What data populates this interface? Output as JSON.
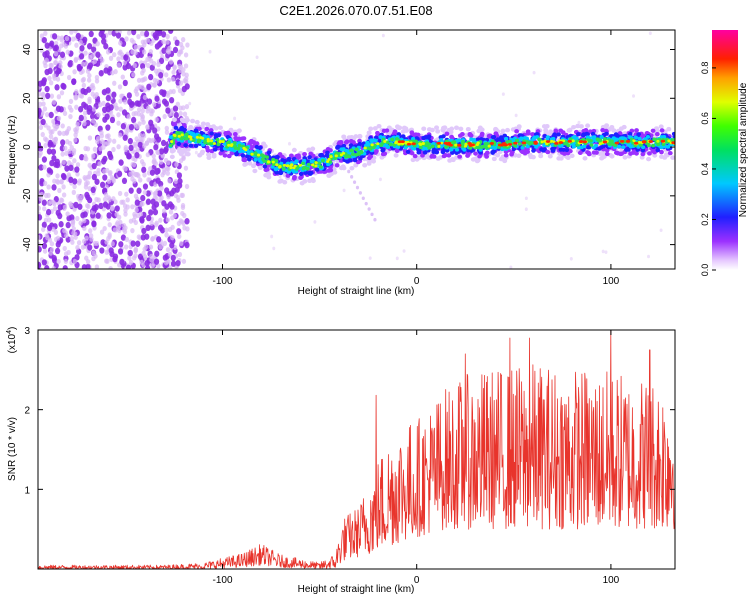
{
  "figure_title": "C2E1.2026.070.07.51.E08",
  "chart_data": [
    {
      "type": "heatmap",
      "title": "C2E1.2026.070.07.51.E08",
      "xlabel": "Height of straight line (km)",
      "ylabel": "Frequency (Hz)",
      "xlim": [
        -195,
        133
      ],
      "ylim": [
        -50,
        48
      ],
      "xticks": [
        -100,
        0,
        100
      ],
      "yticks": [
        -40,
        -20,
        0,
        20,
        40
      ],
      "colorbar": {
        "label": "Normalized spectral amplitude",
        "range": [
          0,
          0.95
        ],
        "ticks": [
          0.0,
          0.2,
          0.4,
          0.6,
          0.8
        ],
        "colormap": "rainbow (white-violet-blue-cyan-green-yellow-red-magenta)"
      },
      "ridge": {
        "description": "spectral ridge, noisy scatter below x=-120 km",
        "points": [
          {
            "x": -125,
            "freq": 5
          },
          {
            "x": -110,
            "freq": 3
          },
          {
            "x": -95,
            "freq": 1
          },
          {
            "x": -80,
            "freq": -4
          },
          {
            "x": -70,
            "freq": -8
          },
          {
            "x": -60,
            "freq": -8
          },
          {
            "x": -50,
            "freq": -7
          },
          {
            "x": -40,
            "freq": -3
          },
          {
            "x": -30,
            "freq": -2
          },
          {
            "x": -20,
            "freq": 2
          },
          {
            "x": -10,
            "freq": 2
          },
          {
            "x": 0,
            "freq": 1
          },
          {
            "x": 20,
            "freq": 1
          },
          {
            "x": 40,
            "freq": 1
          },
          {
            "x": 60,
            "freq": 2
          },
          {
            "x": 80,
            "freq": 2
          },
          {
            "x": 100,
            "freq": 2
          },
          {
            "x": 133,
            "freq": 2
          }
        ]
      }
    },
    {
      "type": "line",
      "xlabel": "Height of straight line (km)",
      "ylabel": "SNR (10 * v/v)",
      "y_multiplier": "(x10",
      "y_multiplier_exp": "4",
      "xlim": [
        -195,
        133
      ],
      "ylim": [
        0,
        3
      ],
      "xticks": [
        -100,
        0,
        100
      ],
      "yticks": [
        1,
        2,
        3
      ],
      "series_color": "#e8342c",
      "envelope": [
        {
          "x": -195,
          "low": 0.0,
          "high": 0.05
        },
        {
          "x": -130,
          "low": 0.0,
          "high": 0.05
        },
        {
          "x": -110,
          "low": 0.0,
          "high": 0.08
        },
        {
          "x": -90,
          "low": 0.02,
          "high": 0.2
        },
        {
          "x": -80,
          "low": 0.05,
          "high": 0.32
        },
        {
          "x": -70,
          "low": 0.02,
          "high": 0.18
        },
        {
          "x": -50,
          "low": 0.0,
          "high": 0.08
        },
        {
          "x": -42,
          "low": 0.0,
          "high": 0.2
        },
        {
          "x": -38,
          "low": 0.1,
          "high": 0.65
        },
        {
          "x": -30,
          "low": 0.15,
          "high": 0.8
        },
        {
          "x": -22,
          "low": 0.2,
          "high": 1.3
        },
        {
          "x": -12,
          "low": 0.3,
          "high": 1.8
        },
        {
          "x": 0,
          "low": 0.4,
          "high": 1.9
        },
        {
          "x": 15,
          "low": 0.5,
          "high": 2.3
        },
        {
          "x": 30,
          "low": 0.5,
          "high": 2.5
        },
        {
          "x": 60,
          "low": 0.5,
          "high": 2.6
        },
        {
          "x": 100,
          "low": 0.5,
          "high": 2.5
        },
        {
          "x": 133,
          "low": 0.5,
          "high": 2.4
        }
      ],
      "peaks": [
        {
          "x": -21,
          "y": 2.18
        },
        {
          "x": 25,
          "y": 2.7
        },
        {
          "x": 48,
          "y": 2.9
        },
        {
          "x": 58,
          "y": 2.9
        },
        {
          "x": 100,
          "y": 3.0
        },
        {
          "x": 120,
          "y": 2.75
        }
      ]
    }
  ]
}
